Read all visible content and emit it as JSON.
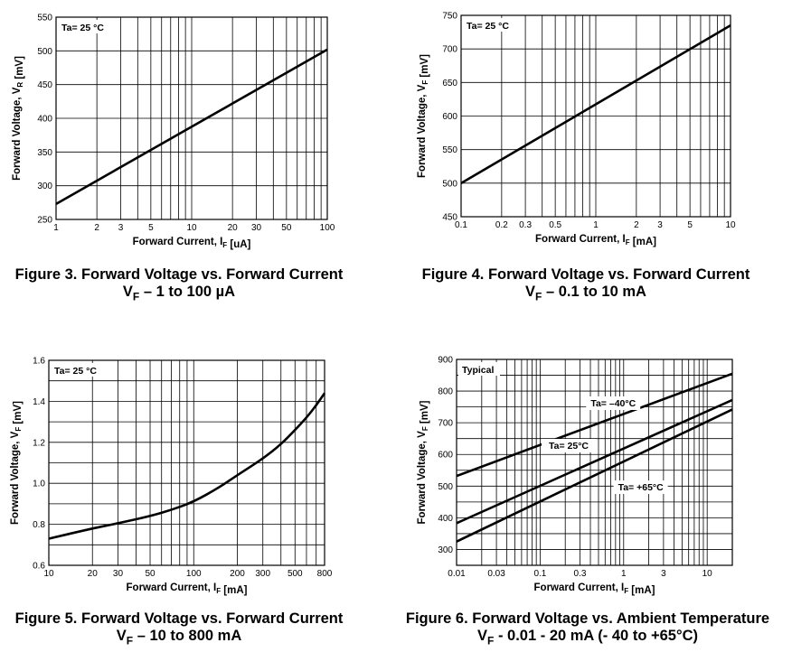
{
  "chart_data": [
    {
      "type": "line",
      "figure_label": "Figure 3. Forward Voltage vs. Forward Current",
      "subtitle": "V_F – 1 to 100 µA",
      "xlabel": "Forward Current, I_F [uA]",
      "ylabel": "Forward Voltage, V_R [mV]",
      "xscale": "log",
      "xlim": [
        1,
        100
      ],
      "ylim": [
        250,
        550
      ],
      "x_ticks": [
        1,
        2,
        3,
        5,
        10,
        20,
        30,
        50,
        100
      ],
      "x_tick_labels": [
        "1",
        "2",
        "3",
        "5",
        "10",
        "20",
        "30",
        "50",
        "100"
      ],
      "y_ticks": [
        250,
        300,
        350,
        400,
        450,
        500,
        550
      ],
      "y_tick_labels": [
        "250",
        "300",
        "350",
        "400",
        "450",
        "500",
        "550"
      ],
      "grid": true,
      "annotations": [
        {
          "text": "Ta= 25 °C",
          "position": "top-left"
        }
      ],
      "series": [
        {
          "x": [
            1,
            100
          ],
          "y": [
            273,
            502
          ]
        }
      ]
    },
    {
      "type": "line",
      "figure_label": "Figure 4. Forward Voltage vs. Forward Current",
      "subtitle": "V_F – 0.1 to 10 mA",
      "xlabel": "Forward Current, I_F [mA]",
      "ylabel": "Forward Voltage, V_F [mV]",
      "xscale": "log",
      "xlim": [
        0.1,
        10
      ],
      "ylim": [
        450,
        750
      ],
      "x_ticks": [
        0.1,
        0.2,
        0.3,
        0.5,
        1,
        2,
        3,
        5,
        10
      ],
      "x_tick_labels": [
        "0.1",
        "0.2",
        "0.3",
        "0.5",
        "1",
        "2",
        "3",
        "5",
        "10"
      ],
      "y_ticks": [
        450,
        500,
        550,
        600,
        650,
        700,
        750
      ],
      "y_tick_labels": [
        "450",
        "500",
        "550",
        "600",
        "650",
        "700",
        "750"
      ],
      "grid": true,
      "annotations": [
        {
          "text": "Ta= 25 °C",
          "position": "top-left"
        }
      ],
      "series": [
        {
          "x": [
            0.1,
            10
          ],
          "y": [
            500,
            735
          ]
        }
      ]
    },
    {
      "type": "line",
      "figure_label": "Figure 5. Forward Voltage vs. Forward Current",
      "subtitle": "V_F – 10 to 800 mA",
      "xlabel": "Forward Current, I_F [mA]",
      "ylabel": "Forward Voltage, V_F [mV]",
      "xscale": "log",
      "xlim": [
        10,
        800
      ],
      "ylim": [
        0.6,
        1.6
      ],
      "x_ticks": [
        10,
        20,
        30,
        50,
        100,
        200,
        300,
        500,
        800
      ],
      "x_tick_labels": [
        "10",
        "20",
        "30",
        "50",
        "100",
        "200",
        "300",
        "500",
        "800"
      ],
      "y_ticks": [
        0.6,
        0.8,
        1.0,
        1.2,
        1.4,
        1.6
      ],
      "y_tick_labels": [
        "0.6",
        "0.8",
        "1.0",
        "1.2",
        "1.4",
        "1.6"
      ],
      "grid": true,
      "annotations": [
        {
          "text": "Ta= 25 °C",
          "position": "top-left"
        }
      ],
      "series": [
        {
          "x": [
            10,
            20,
            30,
            50,
            70,
            100,
            150,
            200,
            300,
            400,
            500,
            600,
            700,
            800
          ],
          "y": [
            0.73,
            0.78,
            0.805,
            0.84,
            0.87,
            0.91,
            0.98,
            1.04,
            1.12,
            1.19,
            1.26,
            1.32,
            1.38,
            1.44
          ]
        }
      ]
    },
    {
      "type": "line",
      "figure_label": "Figure 6. Forward Voltage vs. Ambient Temperature",
      "subtitle": "V_F - 0.01 - 20 mA (- 40 to +65°C)",
      "xlabel": "Forward Current, I_F [mA]",
      "ylabel": "Forward Voltage, V_F [mV]",
      "xscale": "log",
      "xlim": [
        0.01,
        20
      ],
      "ylim": [
        250,
        900
      ],
      "x_ticks": [
        0.01,
        0.03,
        0.1,
        0.3,
        1,
        3,
        10
      ],
      "x_tick_labels": [
        "0.01",
        "0.03",
        "0.1",
        "0.3",
        "1",
        "3",
        "10"
      ],
      "y_ticks": [
        300,
        400,
        500,
        600,
        700,
        800,
        900
      ],
      "y_tick_labels": [
        "300",
        "400",
        "500",
        "600",
        "700",
        "800",
        "900"
      ],
      "grid": true,
      "annotations": [
        {
          "text": "Typical",
          "position": "top-left"
        }
      ],
      "series": [
        {
          "name": "Ta= –40°C",
          "x": [
            0.01,
            20
          ],
          "y": [
            532,
            855
          ]
        },
        {
          "name": "Ta= 25°C",
          "x": [
            0.01,
            20
          ],
          "y": [
            383,
            772
          ]
        },
        {
          "name": "Ta= +65°C",
          "x": [
            0.01,
            20
          ],
          "y": [
            325,
            742
          ]
        }
      ]
    }
  ]
}
